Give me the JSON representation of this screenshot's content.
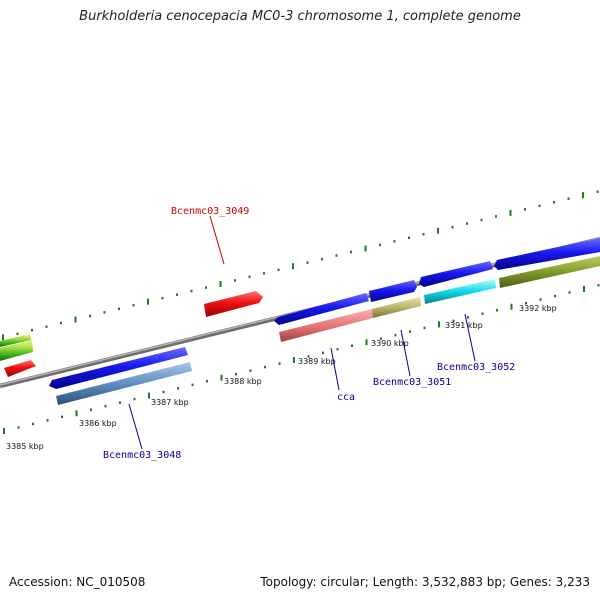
{
  "title": "Burkholderia cenocepacia MC0-3 chromosome 1, complete genome",
  "footer": {
    "accession": "Accession: NC_010508",
    "topology": "Topology: circular; Length: 3,532,883 bp; Genes: 3,233"
  },
  "scale_labels": [
    "3385 kbp",
    "3386 kbp",
    "3387 kbp",
    "3388 kbp",
    "3389 kbp",
    "3390 kbp",
    "3391 kbp",
    "3392 kbp"
  ],
  "gene_labels": {
    "g3049": "Bcenmc03_3049",
    "g3048": "Bcenmc03_3048",
    "cca": "cca",
    "g3051": "Bcenmc03_3051",
    "g3052": "Bcenmc03_3052"
  },
  "colors": {
    "backbone": "#8a8a8a",
    "tick": "#1f7a1f",
    "cds_blue": "#1414e6",
    "cds_red": "#e01010",
    "label_red": "#cc0000",
    "label_blue": "#000099"
  }
}
